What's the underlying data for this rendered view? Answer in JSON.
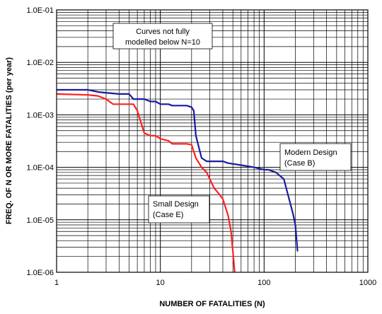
{
  "chart_data": {
    "type": "line",
    "xlabel": "NUMBER OF FATALITIES (N)",
    "ylabel": "FREQ. OF N OR MORE FATALITIES (per year)",
    "x_scale": "log",
    "y_scale": "log",
    "xlim": [
      1,
      1000
    ],
    "ylim": [
      1e-06,
      0.1
    ],
    "grid": true,
    "x_ticks": [
      "1",
      "10",
      "100",
      "1000"
    ],
    "y_ticks": [
      "1.0E-01",
      "1.0E-02",
      "1.0E-03",
      "1.0E-04",
      "1.0E-05",
      "1.0E-06"
    ],
    "series": [
      {
        "name": "Modern Design (Case B)",
        "color": "#1a1aa0",
        "points": [
          [
            1,
            0.003
          ],
          [
            2,
            0.003
          ],
          [
            2.6,
            0.0027
          ],
          [
            4,
            0.0025
          ],
          [
            5,
            0.0025
          ],
          [
            5.5,
            0.002
          ],
          [
            7,
            0.002
          ],
          [
            8,
            0.0018
          ],
          [
            9,
            0.0018
          ],
          [
            10,
            0.0016
          ],
          [
            12,
            0.0016
          ],
          [
            13,
            0.0015
          ],
          [
            18,
            0.0015
          ],
          [
            20,
            0.0014
          ],
          [
            21,
            0.0012
          ],
          [
            22,
            0.0004
          ],
          [
            25,
            0.00015
          ],
          [
            28,
            0.00013
          ],
          [
            32,
            0.00013
          ],
          [
            40,
            0.00013
          ],
          [
            45,
            0.00012
          ],
          [
            60,
            0.00011
          ],
          [
            80,
            0.0001
          ],
          [
            100,
            9e-05
          ],
          [
            110,
            9e-05
          ],
          [
            130,
            8e-05
          ],
          [
            155,
            6e-05
          ],
          [
            170,
            3e-05
          ],
          [
            190,
            1.3e-05
          ],
          [
            200,
            8e-06
          ],
          [
            210,
            2.5e-06
          ]
        ]
      },
      {
        "name": "Small Design (Case E)",
        "color": "#ff2020",
        "points": [
          [
            1,
            0.0025
          ],
          [
            2,
            0.0024
          ],
          [
            2.5,
            0.0023
          ],
          [
            3,
            0.002
          ],
          [
            3.5,
            0.0016
          ],
          [
            5.5,
            0.0016
          ],
          [
            6,
            0.0012
          ],
          [
            7,
            0.00045
          ],
          [
            8,
            0.0004
          ],
          [
            9,
            0.0004
          ],
          [
            10,
            0.00035
          ],
          [
            12,
            0.00032
          ],
          [
            13,
            0.00028
          ],
          [
            18,
            0.00028
          ],
          [
            20,
            0.00027
          ],
          [
            22,
            0.00015
          ],
          [
            25,
            0.0001
          ],
          [
            28,
            8e-05
          ],
          [
            30,
            6e-05
          ],
          [
            33,
            4e-05
          ],
          [
            35,
            3.5e-05
          ],
          [
            40,
            2.5e-05
          ],
          [
            45,
            1.2e-05
          ],
          [
            48,
            6e-06
          ],
          [
            50,
            2.5e-06
          ],
          [
            52,
            1e-06
          ]
        ]
      }
    ],
    "annotations": {
      "note": [
        "Curves not fully",
        "modelled below N=10"
      ],
      "modern": [
        "Modern Design",
        "(Case B)"
      ],
      "small": [
        "Small Design",
        "(Case E)"
      ]
    }
  }
}
